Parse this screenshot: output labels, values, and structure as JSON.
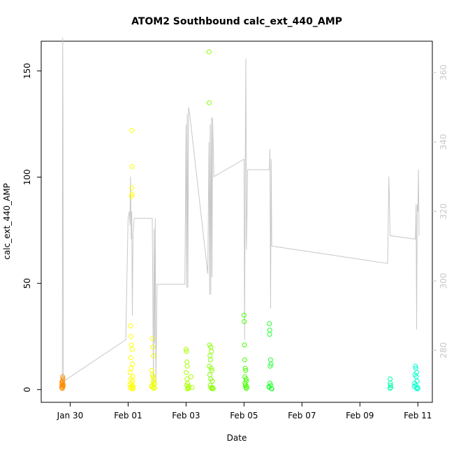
{
  "chart_data": {
    "type": "scatter",
    "title": "ATOM2 Southbound calc_ext_440_AMP",
    "xlabel": "Date",
    "ylabel": "calc_ext_440_AMP",
    "x_unit": "date",
    "xlim": [
      "2024-01-29T00:00",
      "2024-02-11T12:00"
    ],
    "ylim": [
      -6,
      164
    ],
    "y2lim": [
      265,
      369
    ],
    "x_ticks": [
      {
        "date": "2024-01-30",
        "label": "Jan 30"
      },
      {
        "date": "2024-02-01",
        "label": "Feb 01"
      },
      {
        "date": "2024-02-03",
        "label": "Feb 03"
      },
      {
        "date": "2024-02-05",
        "label": "Feb 05"
      },
      {
        "date": "2024-02-07",
        "label": "Feb 07"
      },
      {
        "date": "2024-02-09",
        "label": "Feb 09"
      },
      {
        "date": "2024-02-11",
        "label": "Feb 11"
      }
    ],
    "y_ticks": [
      0,
      50,
      100,
      150
    ],
    "y2_ticks": [
      280,
      300,
      320,
      340,
      360
    ],
    "grid": false,
    "legend": "none",
    "colors": {
      "line": "#c8c8c8",
      "axis": "#000000",
      "right_axis": "#c8c8c8"
    },
    "series": [
      {
        "axis": "left",
        "marker": "open-circle",
        "color": "#ff8c00",
        "points": [
          [
            "2024-01-29T17:00",
            1
          ],
          [
            "2024-01-29T17:10",
            2
          ],
          [
            "2024-01-29T17:20",
            3
          ],
          [
            "2024-01-29T17:30",
            0.5
          ],
          [
            "2024-01-29T17:40",
            4
          ],
          [
            "2024-01-29T17:50",
            2
          ],
          [
            "2024-01-29T18:00",
            5
          ],
          [
            "2024-01-29T18:10",
            1.5
          ],
          [
            "2024-01-29T17:05",
            3.5
          ],
          [
            "2024-01-29T17:45",
            6
          ],
          [
            "2024-01-29T18:05",
            2.5
          ],
          [
            "2024-01-29T17:25",
            1
          ]
        ]
      },
      {
        "axis": "left",
        "marker": "open-circle",
        "color": "#ffff00",
        "points": [
          [
            "2024-02-01T03:00",
            122
          ],
          [
            "2024-02-01T03:10",
            105
          ],
          [
            "2024-02-01T03:05",
            95
          ],
          [
            "2024-02-01T03:15",
            92
          ],
          [
            "2024-02-01T02:50",
            91
          ],
          [
            "2024-02-01T02:00",
            30
          ],
          [
            "2024-02-01T02:20",
            25
          ],
          [
            "2024-02-01T02:40",
            21
          ],
          [
            "2024-02-01T03:20",
            19
          ],
          [
            "2024-02-01T02:10",
            15
          ],
          [
            "2024-02-01T03:30",
            12
          ],
          [
            "2024-02-01T02:30",
            10
          ],
          [
            "2024-02-01T01:40",
            8
          ],
          [
            "2024-02-01T03:40",
            6
          ],
          [
            "2024-02-01T02:15",
            5
          ],
          [
            "2024-02-01T02:45",
            3
          ],
          [
            "2024-02-01T03:25",
            2
          ],
          [
            "2024-02-01T01:50",
            1
          ],
          [
            "2024-02-01T02:35",
            0.5
          ],
          [
            "2024-02-01T03:50",
            0.3
          ],
          [
            "2024-02-01T04:00",
            1.5
          ],
          [
            "2024-02-01T04:10",
            0.8
          ],
          [
            "2024-02-01T01:30",
            2.5
          ],
          [
            "2024-02-01T03:45",
            4
          ]
        ]
      },
      {
        "axis": "left",
        "marker": "open-circle",
        "color": "#eeff00",
        "points": [
          [
            "2024-02-01T20:00",
            24
          ],
          [
            "2024-02-01T20:30",
            20
          ],
          [
            "2024-02-01T21:00",
            16
          ],
          [
            "2024-02-01T19:40",
            9
          ],
          [
            "2024-02-01T20:10",
            7
          ],
          [
            "2024-02-01T21:20",
            5
          ],
          [
            "2024-02-01T20:50",
            4
          ],
          [
            "2024-02-01T21:40",
            3
          ],
          [
            "2024-02-01T19:50",
            2
          ],
          [
            "2024-02-01T20:20",
            1
          ],
          [
            "2024-02-01T21:10",
            0.5
          ],
          [
            "2024-02-01T22:00",
            0.8
          ],
          [
            "2024-02-01T20:40",
            6
          ],
          [
            "2024-02-01T21:30",
            2.5
          ],
          [
            "2024-02-01T19:30",
            1.5
          ]
        ]
      },
      {
        "axis": "left",
        "marker": "open-circle",
        "color": "#aaff00",
        "points": [
          [
            "2024-02-03T00:00",
            19
          ],
          [
            "2024-02-03T00:20",
            18
          ],
          [
            "2024-02-03T00:40",
            13
          ],
          [
            "2024-02-03T01:00",
            11
          ],
          [
            "2024-02-03T00:10",
            8
          ],
          [
            "2024-02-03T00:50",
            5
          ],
          [
            "2024-02-03T01:20",
            3
          ],
          [
            "2024-02-03T00:30",
            2
          ],
          [
            "2024-02-03T01:40",
            1
          ],
          [
            "2024-02-03T02:00",
            0.5
          ],
          [
            "2024-02-03T01:10",
            0.3
          ],
          [
            "2024-02-03T02:20",
            1.5
          ],
          [
            "2024-02-03T04:00",
            6
          ],
          [
            "2024-02-03T05:00",
            1
          ]
        ]
      },
      {
        "axis": "left",
        "marker": "open-circle",
        "color": "#88ff00",
        "points": [
          [
            "2024-02-03T19:00",
            159
          ],
          [
            "2024-02-03T19:10",
            135
          ],
          [
            "2024-02-03T19:30",
            21
          ],
          [
            "2024-02-03T20:30",
            20
          ],
          [
            "2024-02-03T21:00",
            18
          ],
          [
            "2024-02-03T19:50",
            16
          ],
          [
            "2024-02-03T20:10",
            14
          ],
          [
            "2024-02-03T19:20",
            11
          ],
          [
            "2024-02-03T20:50",
            10
          ],
          [
            "2024-02-03T21:20",
            9
          ],
          [
            "2024-02-03T19:40",
            7
          ],
          [
            "2024-02-03T20:20",
            5
          ],
          [
            "2024-02-03T21:40",
            4
          ],
          [
            "2024-02-03T20:00",
            2
          ],
          [
            "2024-02-03T20:40",
            1
          ],
          [
            "2024-02-03T21:10",
            0.5
          ],
          [
            "2024-02-03T22:00",
            0.8
          ],
          [
            "2024-02-03T22:30",
            0.3
          ]
        ]
      },
      {
        "axis": "left",
        "marker": "open-circle",
        "color": "#44ff00",
        "points": [
          [
            "2024-02-05T00:00",
            35
          ],
          [
            "2024-02-05T00:10",
            32
          ],
          [
            "2024-02-05T00:20",
            21
          ],
          [
            "2024-02-05T00:30",
            14
          ],
          [
            "2024-02-05T01:00",
            10
          ],
          [
            "2024-02-05T01:20",
            9
          ],
          [
            "2024-02-05T00:40",
            6
          ],
          [
            "2024-02-05T01:40",
            5
          ],
          [
            "2024-02-05T00:50",
            3
          ],
          [
            "2024-02-05T01:10",
            2
          ],
          [
            "2024-02-05T01:30",
            1
          ],
          [
            "2024-02-05T02:00",
            0.5
          ],
          [
            "2024-02-05T02:20",
            1.5
          ],
          [
            "2024-02-05T01:50",
            4
          ]
        ]
      },
      {
        "axis": "left",
        "marker": "open-circle",
        "color": "#22ff33",
        "points": [
          [
            "2024-02-05T21:00",
            31
          ],
          [
            "2024-02-05T21:20",
            28
          ],
          [
            "2024-02-05T21:10",
            26
          ],
          [
            "2024-02-05T22:00",
            14
          ],
          [
            "2024-02-05T22:20",
            12
          ],
          [
            "2024-02-05T21:40",
            11
          ],
          [
            "2024-02-05T21:30",
            3
          ],
          [
            "2024-02-05T22:10",
            2
          ],
          [
            "2024-02-05T20:50",
            1
          ],
          [
            "2024-02-05T22:40",
            0.5
          ],
          [
            "2024-02-05T23:00",
            0.3
          ],
          [
            "2024-02-05T20:40",
            1.5
          ]
        ]
      },
      {
        "axis": "left",
        "marker": "open-circle",
        "color": "#00ffaa",
        "points": [
          [
            "2024-02-10T01:00",
            5
          ],
          [
            "2024-02-10T01:10",
            3
          ],
          [
            "2024-02-10T01:20",
            2
          ],
          [
            "2024-02-10T01:30",
            1
          ],
          [
            "2024-02-10T00:50",
            0.5
          ]
        ]
      },
      {
        "axis": "left",
        "marker": "open-circle",
        "color": "#00ffcc",
        "points": [
          [
            "2024-02-10T22:00",
            11
          ],
          [
            "2024-02-10T22:20",
            10
          ],
          [
            "2024-02-10T23:00",
            8
          ],
          [
            "2024-02-10T21:40",
            7
          ],
          [
            "2024-02-10T22:40",
            6
          ],
          [
            "2024-02-10T23:20",
            4
          ],
          [
            "2024-02-10T21:20",
            3
          ],
          [
            "2024-02-10T22:10",
            2
          ],
          [
            "2024-02-10T23:40",
            1
          ],
          [
            "2024-02-10T22:50",
            0.5
          ],
          [
            "2024-02-11T00:00",
            0.3
          ],
          [
            "2024-02-10T21:00",
            1.5
          ]
        ]
      },
      {
        "axis": "right",
        "marker": "line",
        "color": "#c8c8c8",
        "points": [
          [
            "2024-01-29T17:30",
            270
          ],
          [
            "2024-01-29T17:40",
            342
          ],
          [
            "2024-01-29T17:50",
            370
          ],
          [
            "2024-01-29T18:00",
            352
          ],
          [
            "2024-01-29T18:20",
            271
          ],
          [
            "2024-01-31T22:00",
            283
          ],
          [
            "2024-02-01T00:00",
            318
          ],
          [
            "2024-02-01T01:00",
            320
          ],
          [
            "2024-02-01T01:30",
            316
          ],
          [
            "2024-02-01T02:00",
            330
          ],
          [
            "2024-02-01T02:30",
            312
          ],
          [
            "2024-02-01T03:00",
            320
          ],
          [
            "2024-02-01T03:30",
            290
          ],
          [
            "2024-02-01T04:00",
            313
          ],
          [
            "2024-02-01T05:00",
            318
          ],
          [
            "2024-02-01T20:00",
            318
          ],
          [
            "2024-02-01T21:00",
            270
          ],
          [
            "2024-02-01T21:30",
            315
          ],
          [
            "2024-02-01T22:00",
            282
          ],
          [
            "2024-02-01T22:30",
            318
          ],
          [
            "2024-02-01T23:00",
            270
          ],
          [
            "2024-02-02T00:00",
            299
          ],
          [
            "2024-02-02T23:00",
            299
          ],
          [
            "2024-02-03T00:00",
            345
          ],
          [
            "2024-02-03T00:30",
            298
          ],
          [
            "2024-02-03T01:00",
            348
          ],
          [
            "2024-02-03T01:30",
            298
          ],
          [
            "2024-02-03T02:00",
            350
          ],
          [
            "2024-02-03T03:00",
            348
          ],
          [
            "2024-02-03T18:00",
            302
          ],
          [
            "2024-02-03T19:00",
            340
          ],
          [
            "2024-02-03T19:30",
            296
          ],
          [
            "2024-02-03T20:00",
            345
          ],
          [
            "2024-02-03T20:30",
            296
          ],
          [
            "2024-02-03T21:00",
            347
          ],
          [
            "2024-02-03T21:30",
            301
          ],
          [
            "2024-02-03T22:00",
            347
          ],
          [
            "2024-02-03T23:00",
            330
          ],
          [
            "2024-02-05T00:00",
            335
          ],
          [
            "2024-02-05T00:30",
            283
          ],
          [
            "2024-02-05T01:00",
            332
          ],
          [
            "2024-02-05T01:30",
            364
          ],
          [
            "2024-02-05T02:00",
            309
          ],
          [
            "2024-02-05T03:00",
            332
          ],
          [
            "2024-02-05T21:00",
            332
          ],
          [
            "2024-02-05T21:30",
            338
          ],
          [
            "2024-02-05T22:00",
            292
          ],
          [
            "2024-02-05T22:30",
            335
          ],
          [
            "2024-02-05T23:00",
            310
          ],
          [
            "2024-02-09T23:00",
            305
          ],
          [
            "2024-02-10T00:00",
            330
          ],
          [
            "2024-02-10T01:00",
            313
          ],
          [
            "2024-02-10T22:00",
            312
          ],
          [
            "2024-02-10T22:30",
            322
          ],
          [
            "2024-02-10T23:00",
            286
          ],
          [
            "2024-02-10T23:30",
            322
          ],
          [
            "2024-02-11T00:00",
            320
          ],
          [
            "2024-02-11T00:30",
            332
          ],
          [
            "2024-02-11T01:00",
            313
          ]
        ]
      }
    ]
  }
}
